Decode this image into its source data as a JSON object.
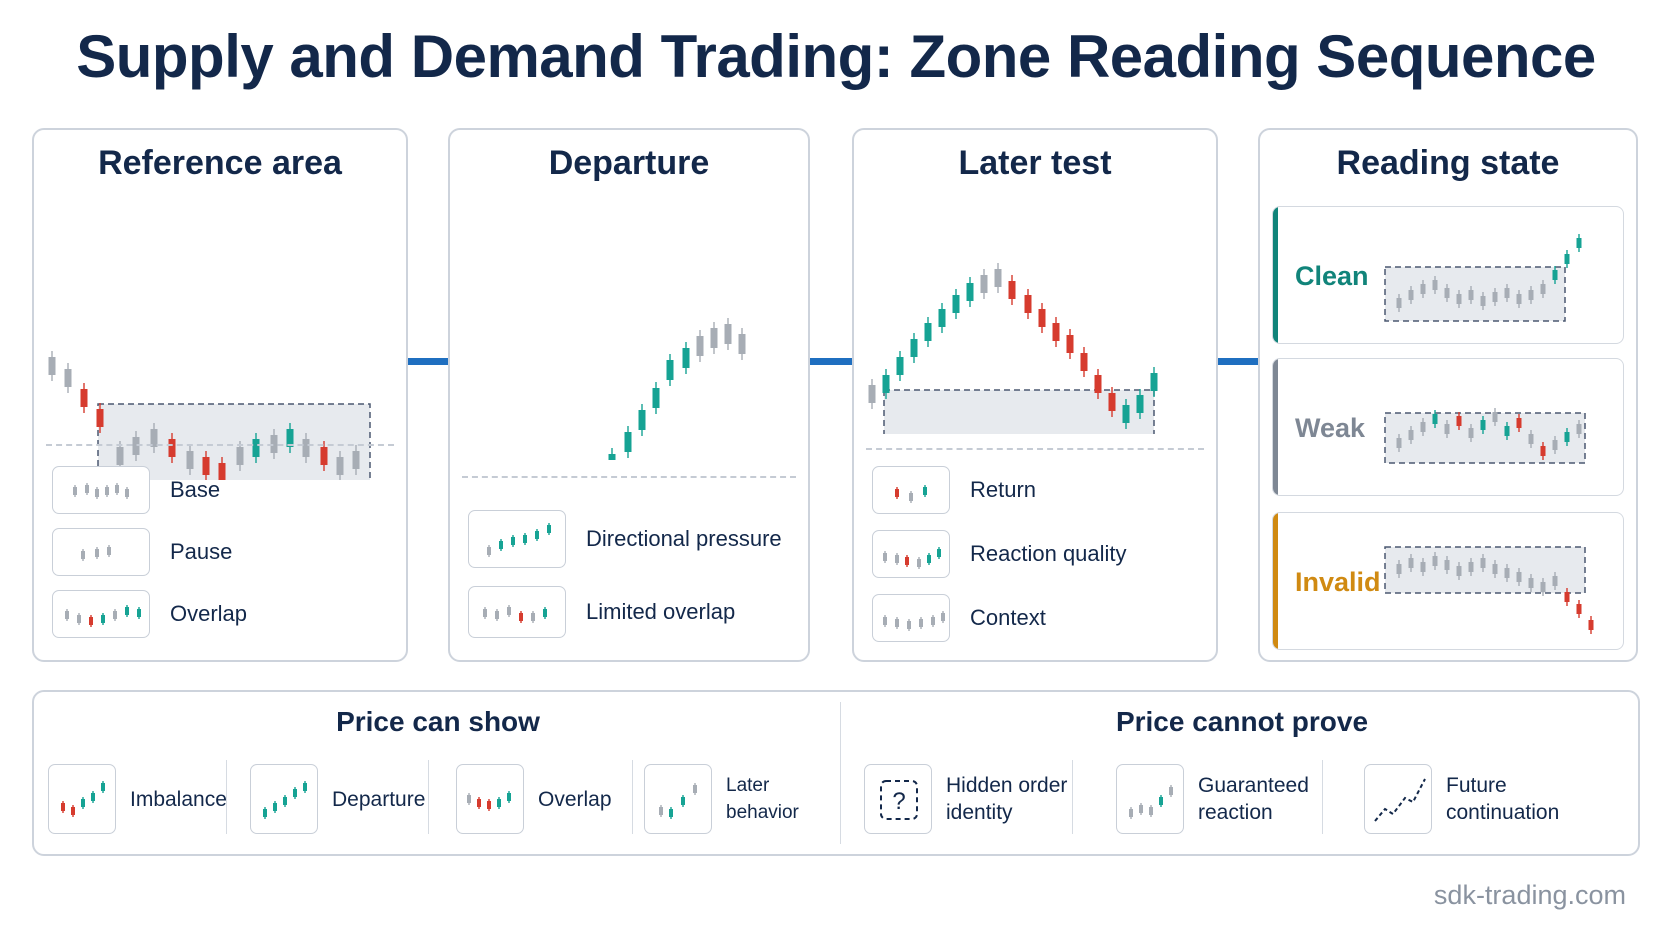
{
  "title": "Supply and Demand Trading: Zone Reading Sequence",
  "colors": {
    "navy": "#13284a",
    "bull": "#16a394",
    "bear": "#d63b2e",
    "neutral": "#a7adb5",
    "connector": "#1f6fc0",
    "clean": "#11847a",
    "weak": "#7e8794",
    "invalid": "#d08a12"
  },
  "panels": {
    "reference": {
      "title": "Reference area",
      "legend": [
        {
          "label": "Base",
          "icon": "base-candles-icon"
        },
        {
          "label": "Pause",
          "icon": "pause-candles-icon"
        },
        {
          "label": "Overlap",
          "icon": "overlap-candles-icon"
        }
      ]
    },
    "departure": {
      "title": "Departure",
      "legend": [
        {
          "label": "Directional pressure",
          "icon": "directional-candles-icon"
        },
        {
          "label": "Limited overlap",
          "icon": "limited-overlap-candles-icon"
        }
      ]
    },
    "later_test": {
      "title": "Later test",
      "legend": [
        {
          "label": "Return",
          "icon": "return-candles-icon"
        },
        {
          "label": "Reaction quality",
          "icon": "reaction-candles-icon"
        },
        {
          "label": "Context",
          "icon": "context-candles-icon"
        }
      ]
    },
    "reading_state": {
      "title": "Reading state",
      "states": [
        {
          "label": "Clean",
          "color": "#11847a"
        },
        {
          "label": "Weak",
          "color": "#7e8794"
        },
        {
          "label": "Invalid",
          "color": "#d08a12"
        }
      ]
    }
  },
  "bottom": {
    "can_show": {
      "title": "Price can show",
      "items": [
        {
          "label": "Imbalance",
          "icon": "imbalance-icon"
        },
        {
          "label": "Departure",
          "icon": "departure-icon"
        },
        {
          "label": "Overlap",
          "icon": "overlap-icon"
        },
        {
          "label": "Later behavior",
          "icon": "later-behavior-icon"
        }
      ]
    },
    "cannot_prove": {
      "title": "Price cannot prove",
      "items": [
        {
          "label": "Hidden order identity",
          "icon": "question-icon"
        },
        {
          "label": "Guaranteed reaction",
          "icon": "guaranteed-reaction-icon"
        },
        {
          "label": "Future continuation",
          "icon": "dashed-trend-icon"
        }
      ]
    }
  },
  "footer": "sdk-trading.com"
}
